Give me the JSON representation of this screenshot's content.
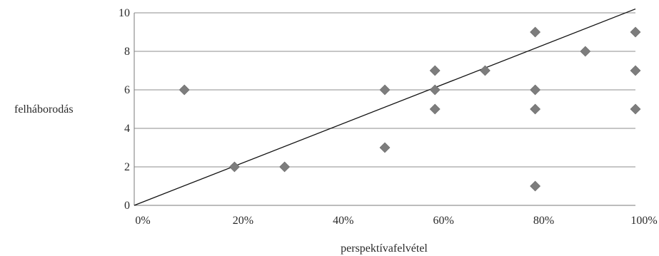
{
  "chart_data": {
    "type": "scatter",
    "title": "",
    "xlabel": "perspektívafelvétel",
    "ylabel": "felháborodás",
    "xlim": [
      0,
      1
    ],
    "ylim": [
      0,
      10
    ],
    "x_ticks": [
      0,
      0.2,
      0.4,
      0.6,
      0.8,
      1.0
    ],
    "x_tick_labels": [
      "0%",
      "20%",
      "40%",
      "60%",
      "80%",
      "100%"
    ],
    "y_ticks": [
      0,
      2,
      4,
      6,
      8,
      10
    ],
    "y_tick_labels": [
      "0",
      "2",
      "4",
      "6",
      "8",
      "10"
    ],
    "grid": "horizontal",
    "legend": "none",
    "marker": "diamond",
    "marker_color": "#7d7d7d",
    "series": [
      {
        "points": [
          [
            0.1,
            6
          ],
          [
            0.2,
            2
          ],
          [
            0.3,
            2
          ],
          [
            0.5,
            6
          ],
          [
            0.5,
            3
          ],
          [
            0.6,
            7
          ],
          [
            0.6,
            6
          ],
          [
            0.6,
            5
          ],
          [
            0.7,
            7
          ],
          [
            0.8,
            9
          ],
          [
            0.8,
            6
          ],
          [
            0.8,
            5
          ],
          [
            0.8,
            1
          ],
          [
            0.9,
            8
          ],
          [
            1.0,
            9
          ],
          [
            1.0,
            7
          ],
          [
            1.0,
            5
          ]
        ]
      }
    ],
    "trendline": {
      "from": [
        0,
        0
      ],
      "to": [
        1,
        10.2
      ],
      "color": "#111111"
    }
  }
}
